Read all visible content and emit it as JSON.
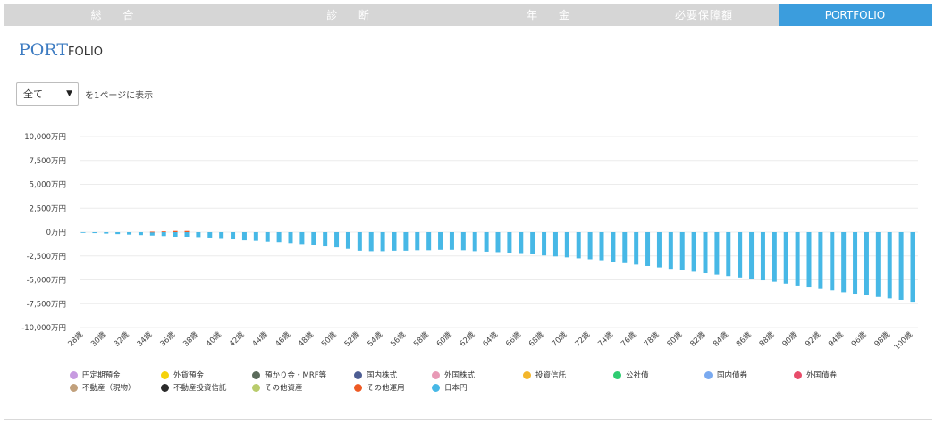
{
  "tabs": [
    {
      "label": "総 合",
      "active": false
    },
    {
      "label": "診 断",
      "active": false
    },
    {
      "label": "年 金",
      "active": false
    },
    {
      "label": "必要保障額",
      "active": false
    },
    {
      "label": "PORTFOLIO",
      "active": true
    }
  ],
  "title": {
    "big": "PORT",
    "small": "FOLIO"
  },
  "filter": {
    "selected": "全て",
    "suffix": "を1ページに表示"
  },
  "legend": [
    {
      "label": "円定期預金",
      "color": "#c79be0"
    },
    {
      "label": "外貨預金",
      "color": "#f5d20b"
    },
    {
      "label": "預かり金・MRF等",
      "color": "#5b6b5b"
    },
    {
      "label": "国内株式",
      "color": "#4d5d93"
    },
    {
      "label": "外国株式",
      "color": "#e89ab6"
    },
    {
      "label": "投資信託",
      "color": "#f3b62b"
    },
    {
      "label": "公社債",
      "color": "#2ecc71"
    },
    {
      "label": "国内債券",
      "color": "#7aaaf0"
    },
    {
      "label": "外国債券",
      "color": "#e84c6a"
    },
    {
      "label": "不動産（現物）",
      "color": "#c1a07c"
    },
    {
      "label": "不動産投資信託",
      "color": "#2b2b2b"
    },
    {
      "label": "その他資産",
      "color": "#b9cc6c"
    },
    {
      "label": "その他運用",
      "color": "#ee5a24"
    },
    {
      "label": "日本円",
      "color": "#47b8e6"
    }
  ],
  "chart_data": {
    "type": "bar",
    "stacked": true,
    "ylim": [
      -10000,
      10000
    ],
    "yticks": [
      "10,000万円",
      "7,500万円",
      "5,000万円",
      "2,500万円",
      "0万円",
      "-2,500万円",
      "-5,000万円",
      "-7,500万円",
      "-10,000万円"
    ],
    "ytick_values": [
      10000,
      7500,
      5000,
      2500,
      0,
      -2500,
      -5000,
      -7500,
      -10000
    ],
    "xtick_labels": [
      "28歳",
      "30歳",
      "32歳",
      "34歳",
      "36歳",
      "38歳",
      "40歳",
      "42歳",
      "44歳",
      "46歳",
      "48歳",
      "50歳",
      "52歳",
      "54歳",
      "56歳",
      "58歳",
      "60歳",
      "62歳",
      "64歳",
      "66歳",
      "68歳",
      "70歳",
      "72歳",
      "74歳",
      "76歳",
      "78歳",
      "80歳",
      "82歳",
      "84歳",
      "86歳",
      "88歳",
      "90歳",
      "92歳",
      "94歳",
      "96歳",
      "98歳",
      "100歳"
    ],
    "categories": [
      "28歳",
      "29歳",
      "30歳",
      "31歳",
      "32歳",
      "33歳",
      "34歳",
      "35歳",
      "36歳",
      "37歳",
      "38歳",
      "39歳",
      "40歳",
      "41歳",
      "42歳",
      "43歳",
      "44歳",
      "45歳",
      "46歳",
      "47歳",
      "48歳",
      "49歳",
      "50歳",
      "51歳",
      "52歳",
      "53歳",
      "54歳",
      "55歳",
      "56歳",
      "57歳",
      "58歳",
      "59歳",
      "60歳",
      "61歳",
      "62歳",
      "63歳",
      "64歳",
      "65歳",
      "66歳",
      "67歳",
      "68歳",
      "69歳",
      "70歳",
      "71歳",
      "72歳",
      "73歳",
      "74歳",
      "75歳",
      "76歳",
      "77歳",
      "78歳",
      "79歳",
      "80歳",
      "81歳",
      "82歳",
      "83歳",
      "84歳",
      "85歳",
      "86歳",
      "87歳",
      "88歳",
      "89歳",
      "90歳",
      "91歳",
      "92歳",
      "93歳",
      "94歳",
      "95歳",
      "96歳",
      "97歳",
      "98歳",
      "99歳",
      "100歳"
    ],
    "grid": true,
    "legend_position": "bottom",
    "series": [
      {
        "name": "日本円",
        "color": "#47b8e6",
        "values": [
          -50,
          -100,
          -150,
          -200,
          -250,
          -300,
          -350,
          -400,
          -500,
          -550,
          -600,
          -650,
          -700,
          -750,
          -850,
          -900,
          -1000,
          -1050,
          -1150,
          -1250,
          -1350,
          -1500,
          -1600,
          -1750,
          -1950,
          -2000,
          -2000,
          -1950,
          -1950,
          -1900,
          -1900,
          -1850,
          -1850,
          -1900,
          -2000,
          -2050,
          -2100,
          -2150,
          -2200,
          -2300,
          -2450,
          -2550,
          -2650,
          -2750,
          -2850,
          -2950,
          -3100,
          -3250,
          -3400,
          -3550,
          -3700,
          -3850,
          -4000,
          -4150,
          -4300,
          -4450,
          -4600,
          -4750,
          -4900,
          -5050,
          -5200,
          -5400,
          -5600,
          -5800,
          -5950,
          -6100,
          -6300,
          -6450,
          -6600,
          -6800,
          -6950,
          -7100,
          -7300
        ]
      },
      {
        "name": "その他運用",
        "color": "#ee5a24",
        "values": [
          0,
          0,
          0,
          0,
          0,
          0,
          50,
          80,
          120,
          120,
          0,
          0,
          0,
          0,
          0,
          0,
          0,
          0,
          0,
          0,
          0,
          0,
          0,
          0,
          0,
          0,
          0,
          0,
          0,
          0,
          0,
          0,
          0,
          0,
          0,
          0,
          0,
          0,
          0,
          0,
          0,
          0,
          0,
          0,
          0,
          0,
          0,
          0,
          0,
          0,
          0,
          0,
          0,
          0,
          0,
          0,
          0,
          0,
          0,
          0,
          0,
          0,
          0,
          0,
          0,
          0,
          0,
          0,
          0,
          0,
          0,
          0,
          0
        ]
      }
    ]
  }
}
